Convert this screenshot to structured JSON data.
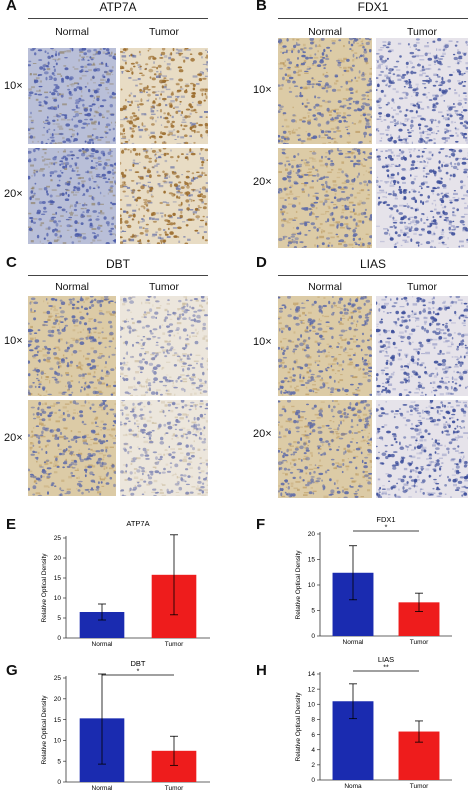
{
  "panels": [
    {
      "letter": "A",
      "stain": "ATP7A",
      "col_left": "Normal",
      "col_right": "Tumor",
      "row_top": "10×",
      "row_bottom": "20×",
      "left_color": "normal_blue",
      "right_color": "tumor_brown"
    },
    {
      "letter": "B",
      "stain": "FDX1",
      "col_left": "Normal",
      "col_right": "Tumor",
      "row_top": "10×",
      "row_bottom": "20×",
      "left_color": "normal_tan",
      "right_color": "tumor_blue"
    },
    {
      "letter": "C",
      "stain": "DBT",
      "col_left": "Normal",
      "col_right": "Tumor",
      "row_top": "10×",
      "row_bottom": "20×",
      "left_color": "normal_tan",
      "right_color": "tumor_pale"
    },
    {
      "letter": "D",
      "stain": "LIAS",
      "col_left": "Normal",
      "col_right": "Tumor",
      "row_top": "10×",
      "row_bottom": "20×",
      "left_color": "normal_tan",
      "right_color": "tumor_blue"
    }
  ],
  "tissue_colors": {
    "normal_blue": {
      "bg": "#b9bfd8",
      "dot": "#4a5aa8",
      "fleck": "#8a7a5a"
    },
    "tumor_brown": {
      "bg": "#e8dcc4",
      "dot": "#9a6a2a",
      "fleck": "#4a5aa0"
    },
    "normal_tan": {
      "bg": "#dccba6",
      "dot": "#5a68a8",
      "fleck": "#b8955a"
    },
    "tumor_blue": {
      "bg": "#e6e3ea",
      "dot": "#3a4c9a",
      "fleck": "#8a90c0"
    },
    "tumor_pale": {
      "bg": "#ece6dc",
      "dot": "#7f86b4",
      "fleck": "#c8b89a"
    }
  },
  "chart_data": [
    {
      "letter": "E",
      "type": "bar",
      "title": "ATP7A",
      "categories": [
        "Normal",
        "Tumor"
      ],
      "values": [
        6.5,
        15.8
      ],
      "errors": [
        2,
        10
      ],
      "ylabel": "Relative Optical Density",
      "ylim": [
        0,
        25
      ],
      "yticks": [
        0,
        5,
        10,
        15,
        20,
        25
      ],
      "colors": [
        "#1a2bb0",
        "#ee1c1c"
      ],
      "significance": ""
    },
    {
      "letter": "F",
      "type": "bar",
      "title": "FDX1",
      "categories": [
        "Normal",
        "Tumor"
      ],
      "values": [
        12.4,
        6.6
      ],
      "errors": [
        5.3,
        1.8
      ],
      "ylabel": "Relative Optical Density",
      "ylim": [
        0,
        20
      ],
      "yticks": [
        0,
        5,
        10,
        15,
        20
      ],
      "colors": [
        "#1a2bb0",
        "#ee1c1c"
      ],
      "significance": "*"
    },
    {
      "letter": "G",
      "type": "bar",
      "title": "DBT",
      "categories": [
        "Normal",
        "Tumor"
      ],
      "values": [
        15.3,
        7.5
      ],
      "errors": [
        11,
        3.5
      ],
      "ylabel": "Relative Optical Density",
      "ylim": [
        0,
        25
      ],
      "yticks": [
        0,
        5,
        10,
        15,
        20,
        25
      ],
      "colors": [
        "#1a2bb0",
        "#ee1c1c"
      ],
      "significance": "*"
    },
    {
      "letter": "H",
      "type": "bar",
      "title": "LIAS",
      "categories": [
        "Noma",
        "Tumor"
      ],
      "values": [
        10.4,
        6.4
      ],
      "errors": [
        2.3,
        1.4
      ],
      "ylabel": "Relative Optical Density",
      "ylim": [
        0,
        14
      ],
      "yticks": [
        0,
        2,
        4,
        6,
        8,
        10,
        12,
        14
      ],
      "colors": [
        "#1a2bb0",
        "#ee1c1c"
      ],
      "significance": "**"
    }
  ]
}
